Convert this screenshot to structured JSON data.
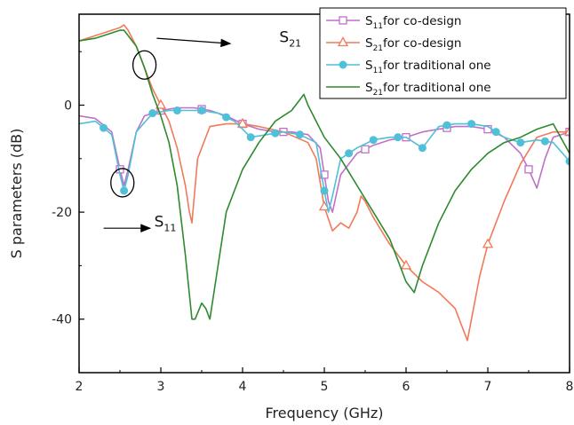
{
  "chart_data": {
    "type": "line",
    "xlabel": "Frequency (GHz)",
    "ylabel": "S parameters (dB)",
    "xlim": [
      2,
      8
    ],
    "ylim": [
      -50,
      17
    ],
    "xticks": [
      2,
      3,
      4,
      5,
      6,
      7,
      8
    ],
    "yticks": [
      0,
      -20,
      -40
    ],
    "grid": false,
    "legend_position": "top-right",
    "colors": {
      "s11_codesign": "#c070c8",
      "s21_codesign": "#f07a5a",
      "s11_traditional": "#4fc0d8",
      "s21_traditional": "#2e8a2e"
    },
    "series": [
      {
        "key": "s11_codesign",
        "name_main": "S",
        "name_sub": "11",
        "name_rest": "for co-design",
        "marker": "square",
        "x": [
          2.0,
          2.2,
          2.4,
          2.5,
          2.55,
          2.6,
          2.7,
          2.8,
          3.0,
          3.2,
          3.4,
          3.6,
          3.8,
          4.0,
          4.2,
          4.4,
          4.6,
          4.8,
          4.95,
          5.0,
          5.05,
          5.1,
          5.2,
          5.4,
          5.6,
          5.8,
          6.0,
          6.2,
          6.4,
          6.6,
          6.8,
          7.0,
          7.2,
          7.4,
          7.5,
          7.6,
          7.7,
          7.8,
          8.0
        ],
        "y": [
          -2,
          -2.5,
          -5,
          -12,
          -15,
          -12,
          -5,
          -2,
          -1,
          -0.5,
          -0.5,
          -1,
          -2,
          -3.5,
          -4.5,
          -5,
          -5,
          -5.5,
          -8,
          -13,
          -18,
          -20,
          -13,
          -9,
          -7.5,
          -6.5,
          -6,
          -5,
          -4.5,
          -4,
          -4,
          -4.5,
          -6,
          -9,
          -12,
          -15.5,
          -10,
          -6,
          -5
        ],
        "marker_x": [
          2.5,
          3.0,
          3.5,
          4.0,
          4.5,
          5.0,
          5.5,
          6.0,
          6.5,
          7.0,
          7.5,
          8.0
        ]
      },
      {
        "key": "s21_codesign",
        "name_main": "S",
        "name_sub": "21",
        "name_rest": "for co-design",
        "marker": "triangle",
        "x": [
          2.0,
          2.2,
          2.4,
          2.5,
          2.55,
          2.6,
          2.7,
          2.8,
          2.9,
          3.0,
          3.1,
          3.2,
          3.3,
          3.35,
          3.38,
          3.45,
          3.6,
          3.8,
          4.0,
          4.2,
          4.5,
          4.8,
          4.9,
          5.0,
          5.1,
          5.2,
          5.3,
          5.4,
          5.45,
          5.5,
          5.6,
          5.8,
          6.0,
          6.2,
          6.4,
          6.6,
          6.7,
          6.75,
          6.8,
          6.9,
          7.0,
          7.2,
          7.4,
          7.6,
          7.8,
          8.0
        ],
        "y": [
          12,
          13,
          14,
          14.5,
          15,
          14,
          11,
          7,
          3,
          0,
          -3,
          -8,
          -15,
          -20,
          -22,
          -10,
          -4,
          -3.5,
          -3.5,
          -4,
          -5,
          -7,
          -10,
          -19,
          -23.5,
          -22,
          -23,
          -20,
          -17,
          -18,
          -21,
          -26,
          -30,
          -33,
          -35,
          -38,
          -42,
          -44,
          -40,
          -32,
          -26,
          -18,
          -11,
          -6,
          -5,
          -5
        ],
        "marker_x": [
          3.0,
          4.0,
          5.0,
          6.0,
          7.0,
          8.0
        ]
      },
      {
        "key": "s11_traditional",
        "name_main": "S",
        "name_sub": "11",
        "name_rest": "for traditional one",
        "marker": "circle",
        "x": [
          2.0,
          2.2,
          2.4,
          2.5,
          2.55,
          2.6,
          2.7,
          2.9,
          3.1,
          3.3,
          3.5,
          3.7,
          3.9,
          4.0,
          4.1,
          4.3,
          4.5,
          4.7,
          4.9,
          5.0,
          5.05,
          5.1,
          5.2,
          5.4,
          5.6,
          5.8,
          6.0,
          6.1,
          6.2,
          6.4,
          6.6,
          6.8,
          7.0,
          7.2,
          7.4,
          7.6,
          7.8,
          8.0
        ],
        "y": [
          -3.5,
          -3,
          -5.5,
          -13,
          -16,
          -13,
          -5,
          -1.5,
          -1,
          -1,
          -1,
          -1.5,
          -3,
          -4.5,
          -6,
          -5.5,
          -5,
          -5.5,
          -7,
          -16,
          -20,
          -17,
          -10,
          -8,
          -6.5,
          -6,
          -6,
          -7,
          -8,
          -4,
          -3.5,
          -3.5,
          -4,
          -6,
          -7,
          -6.5,
          -7,
          -10.5
        ],
        "marker_x": [
          2.3,
          2.55,
          2.9,
          3.2,
          3.5,
          3.8,
          4.1,
          4.4,
          4.7,
          5.0,
          5.3,
          5.6,
          5.9,
          6.2,
          6.5,
          6.8,
          7.1,
          7.4,
          7.7,
          8.0
        ]
      },
      {
        "key": "s21_traditional",
        "name_main": "S",
        "name_sub": "21",
        "name_rest": "for traditional one",
        "marker": "none",
        "x": [
          2.0,
          2.2,
          2.4,
          2.5,
          2.55,
          2.6,
          2.7,
          2.8,
          2.9,
          3.0,
          3.1,
          3.2,
          3.3,
          3.38,
          3.42,
          3.5,
          3.55,
          3.6,
          3.7,
          3.8,
          4.0,
          4.2,
          4.4,
          4.6,
          4.7,
          4.75,
          4.8,
          4.9,
          5.0,
          5.2,
          5.4,
          5.6,
          5.8,
          6.0,
          6.1,
          6.2,
          6.4,
          6.6,
          6.8,
          7.0,
          7.2,
          7.4,
          7.6,
          7.8,
          8.0
        ],
        "y": [
          12,
          12.5,
          13.5,
          14,
          14,
          13,
          11,
          7,
          2,
          -2,
          -7,
          -15,
          -28,
          -40,
          -40,
          -37,
          -38,
          -40,
          -30,
          -20,
          -12,
          -7,
          -3,
          -1,
          1,
          2,
          0,
          -3,
          -6,
          -10,
          -15,
          -20,
          -25,
          -33,
          -35,
          -30,
          -22,
          -16,
          -12,
          -9,
          -7,
          -6,
          -4.5,
          -3.5,
          -9
        ]
      }
    ],
    "annotations": [
      {
        "main": "S",
        "sub": "21",
        "x": 4.45,
        "y": 11.8,
        "arrow_from": [
          2.95,
          12.5
        ],
        "arrow_to": [
          3.85,
          11.5
        ],
        "ellipse": [
          2.8,
          7.5
        ]
      },
      {
        "main": "S",
        "sub": "11",
        "x": 2.92,
        "y": -22.7,
        "arrow_from": [
          2.3,
          -23
        ],
        "arrow_to": [
          2.87,
          -23
        ],
        "ellipse": [
          2.53,
          -14.5
        ]
      }
    ]
  }
}
